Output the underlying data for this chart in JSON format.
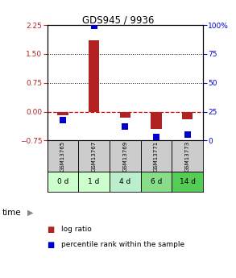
{
  "title": "GDS945 / 9936",
  "samples": [
    "GSM13765",
    "GSM13767",
    "GSM13769",
    "GSM13771",
    "GSM13773"
  ],
  "time_labels": [
    "0 d",
    "1 d",
    "4 d",
    "6 d",
    "14 d"
  ],
  "log_ratio": [
    -0.1,
    1.85,
    -0.15,
    -0.45,
    -0.2
  ],
  "percentile_rank": [
    18,
    99,
    12,
    3,
    5
  ],
  "ylim_left": [
    -0.75,
    2.25
  ],
  "ylim_right": [
    0,
    100
  ],
  "yticks_left": [
    -0.75,
    0,
    0.75,
    1.5,
    2.25
  ],
  "yticks_right": [
    0,
    25,
    50,
    75,
    100
  ],
  "hlines": [
    0.75,
    1.5
  ],
  "bar_color": "#b22222",
  "dot_color": "#0000cc",
  "zero_line_color": "#cc0000",
  "time_colors": [
    "#ccffcc",
    "#ccffcc",
    "#bbeecc",
    "#88dd88",
    "#55cc55"
  ],
  "gsm_bg": "#cccccc",
  "bar_width": 0.35,
  "dot_size": 28
}
